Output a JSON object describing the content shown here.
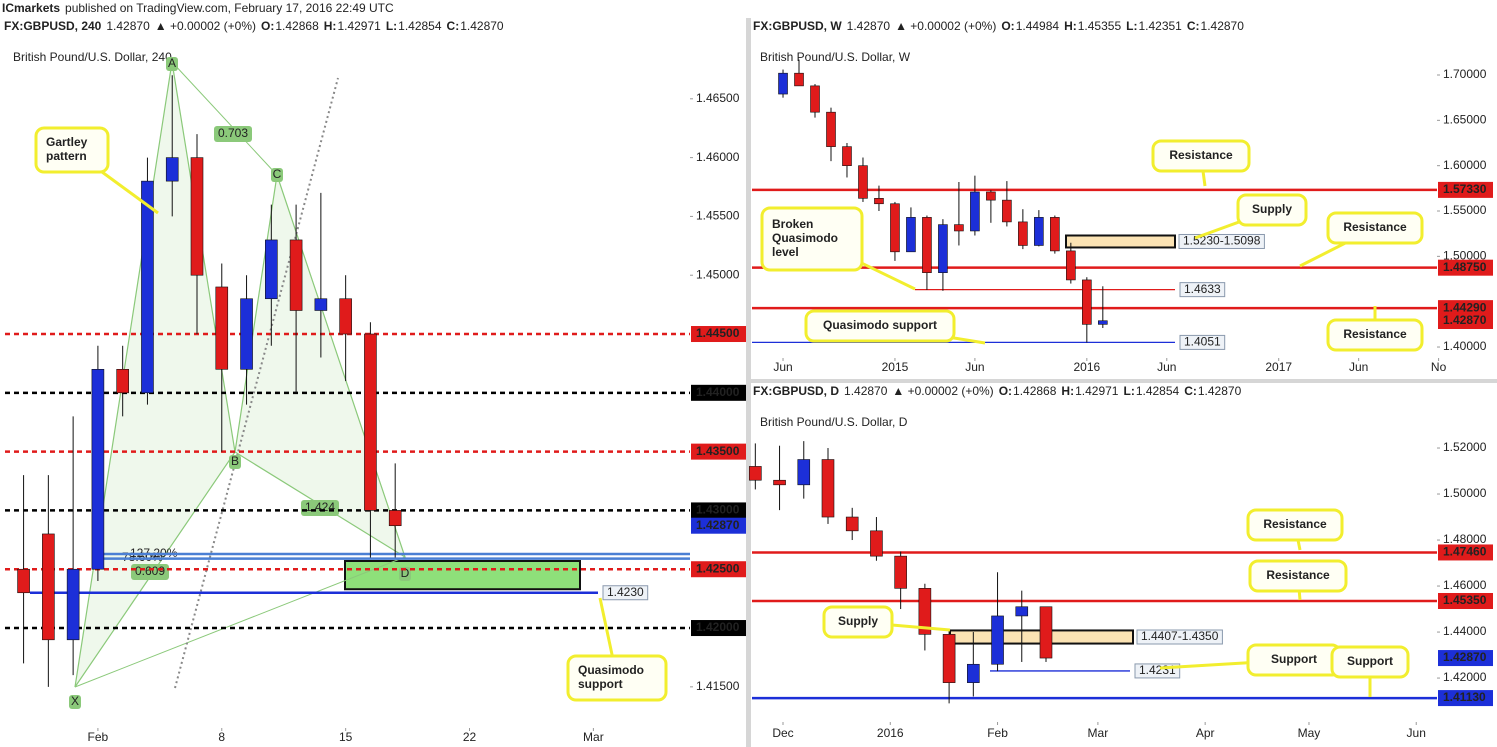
{
  "header": {
    "publisher": "ICmarkets",
    "published": "published on TradingView.com, February 17, 2016 22:49 UTC"
  },
  "chart_data": [
    {
      "type": "candlestick",
      "symbol": "FX:GBPUSD, 240",
      "price": "1.42870",
      "change": "▲ +0.00002 (+0%)",
      "ohlc": [
        {
          "key": "O:",
          "value": "1.42868"
        },
        {
          "key": "H:",
          "value": "1.42971"
        },
        {
          "key": "L:",
          "value": "1.42854"
        },
        {
          "key": "C:",
          "value": "1.42870"
        }
      ],
      "title": "British Pound/U.S. Dollar, 240",
      "up_color": "#1c2fd8",
      "down_color": "#e01b1b",
      "x": [
        -3,
        -2,
        -1,
        0,
        1,
        2,
        3,
        4,
        5,
        6,
        7,
        8,
        9,
        10,
        11,
        12
      ],
      "open": [
        1.425,
        1.428,
        1.419,
        1.425,
        1.442,
        1.44,
        1.458,
        1.46,
        1.449,
        1.442,
        1.448,
        1.453,
        1.447,
        1.448,
        1.445,
        1.43
      ],
      "high": [
        1.433,
        1.433,
        1.438,
        1.444,
        1.444,
        1.46,
        1.467,
        1.462,
        1.451,
        1.45,
        1.456,
        1.456,
        1.457,
        1.45,
        1.446,
        1.434
      ],
      "low": [
        1.417,
        1.415,
        1.416,
        1.424,
        1.438,
        1.439,
        1.455,
        1.445,
        1.435,
        1.439,
        1.444,
        1.44,
        1.443,
        1.441,
        1.426,
        1.426
      ],
      "close": [
        1.423,
        1.419,
        1.425,
        1.442,
        1.44,
        1.458,
        1.46,
        1.45,
        1.442,
        1.448,
        1.453,
        1.447,
        1.448,
        1.445,
        1.43,
        1.4287
      ],
      "xlim": [
        -3.75,
        23.9
      ],
      "xticks": [
        {
          "value": 0,
          "label": "Feb"
        },
        {
          "value": 5,
          "label": "8"
        },
        {
          "value": 10,
          "label": "15"
        },
        {
          "value": 15,
          "label": "22"
        },
        {
          "value": 20,
          "label": "Mar"
        }
      ],
      "ylim": [
        1.4115,
        1.47
      ],
      "yticks": [
        {
          "value": 1.465,
          "label": "1.46500"
        },
        {
          "value": 1.46,
          "label": "1.46000"
        },
        {
          "value": 1.455,
          "label": "1.45500"
        },
        {
          "value": 1.45,
          "label": "1.45000"
        },
        {
          "value": 1.415,
          "label": "1.41500"
        }
      ],
      "levels": [
        {
          "value": 1.445,
          "label": "1.44500",
          "color": "#e01b1b",
          "style": "dashed"
        },
        {
          "value": 1.44,
          "label": "1.44000",
          "color": "#000000",
          "style": "dashed"
        },
        {
          "value": 1.435,
          "label": "1.43500",
          "color": "#e01b1b",
          "style": "dashed"
        },
        {
          "value": 1.43,
          "label": "1.43000",
          "color": "#000000",
          "style": "dashed"
        },
        {
          "value": 1.425,
          "label": "1.42500",
          "color": "#e01b1b",
          "style": "dashed"
        },
        {
          "value": 1.42,
          "label": "1.42000",
          "color": "#000000",
          "style": "dashed"
        },
        {
          "value": 1.423,
          "note": "1.4230",
          "color": "#1c2fd8",
          "style": "solid"
        },
        {
          "value": 1.4263,
          "color": "#4a7fd4",
          "style": "solid"
        },
        {
          "value": 1.4259,
          "color": "#4a7fd4",
          "style": "solid"
        }
      ],
      "price_label": {
        "value": 1.4287,
        "label": "1.42870",
        "color": "#1c2fd8"
      },
      "zones": [
        {
          "low": 1.4233,
          "high": 1.4257,
          "color": "#8ee07a"
        }
      ],
      "annotations": [
        {
          "lines": [
            "Gartley",
            "pattern"
          ]
        },
        {
          "lines": [
            "Quasimodo",
            "support"
          ]
        }
      ],
      "pattern_points": [
        "X",
        "A",
        "B",
        "C",
        "D"
      ],
      "ratios": [
        "0.703",
        "1.424",
        "0.609"
      ],
      "fib_labels": [
        "127.20%",
        "78.60%"
      ]
    },
    {
      "type": "candlestick",
      "symbol": "FX:GBPUSD, W",
      "price": "1.42870",
      "change": "▲ +0.00002 (+0%)",
      "ohlc": [
        {
          "key": "O:",
          "value": "1.44984"
        },
        {
          "key": "H:",
          "value": "1.45355"
        },
        {
          "key": "L:",
          "value": "1.42351"
        },
        {
          "key": "C:",
          "value": "1.42870"
        }
      ],
      "title": "British Pound/U.S. Dollar, W",
      "up_color": "#1c2fd8",
      "down_color": "#e01b1b",
      "x": [
        0,
        1,
        2,
        3,
        4,
        5,
        6,
        7,
        8,
        9,
        10,
        11,
        12,
        13,
        14,
        15,
        16,
        17,
        18,
        19,
        20
      ],
      "open": [
        1.679,
        1.702,
        1.688,
        1.659,
        1.621,
        1.6,
        1.564,
        1.558,
        1.505,
        1.543,
        1.482,
        1.535,
        1.528,
        1.571,
        1.562,
        1.538,
        1.512,
        1.543,
        1.506,
        1.474,
        1.425
      ],
      "high": [
        1.706,
        1.717,
        1.69,
        1.664,
        1.625,
        1.609,
        1.578,
        1.56,
        1.554,
        1.545,
        1.541,
        1.582,
        1.589,
        1.573,
        1.583,
        1.552,
        1.551,
        1.545,
        1.515,
        1.477,
        1.467
      ],
      "low": [
        1.675,
        1.688,
        1.653,
        1.605,
        1.587,
        1.56,
        1.55,
        1.495,
        1.505,
        1.463,
        1.462,
        1.512,
        1.523,
        1.537,
        1.533,
        1.508,
        1.511,
        1.503,
        1.47,
        1.405,
        1.421
      ],
      "close": [
        1.702,
        1.688,
        1.659,
        1.621,
        1.6,
        1.564,
        1.558,
        1.505,
        1.543,
        1.482,
        1.535,
        1.528,
        1.571,
        1.562,
        1.538,
        1.512,
        1.543,
        1.506,
        1.474,
        1.425,
        1.429
      ],
      "xlim": [
        -1.94,
        40.9
      ],
      "xticks": [
        {
          "value": 0,
          "label": "Jun"
        },
        {
          "value": 7,
          "label": "2015"
        },
        {
          "value": 12,
          "label": "Jun"
        },
        {
          "value": 19,
          "label": "2016"
        },
        {
          "value": 24,
          "label": "Jun"
        },
        {
          "value": 31,
          "label": "2017"
        },
        {
          "value": 36,
          "label": "Jun"
        },
        {
          "value": 41,
          "label": "No"
        }
      ],
      "ylim": [
        1.3879,
        1.7386
      ],
      "yticks": [
        {
          "value": 1.7,
          "label": "1.70000"
        },
        {
          "value": 1.65,
          "label": "1.65000"
        },
        {
          "value": 1.6,
          "label": "1.60000"
        },
        {
          "value": 1.55,
          "label": "1.55000"
        },
        {
          "value": 1.5,
          "label": "1.50000"
        },
        {
          "value": 1.4,
          "label": "1.40000"
        }
      ],
      "levels": [
        {
          "value": 1.5733,
          "label": "1.57330",
          "color": "#e01b1b",
          "style": "solid"
        },
        {
          "value": 1.4875,
          "label": "1.48750",
          "color": "#e01b1b",
          "style": "solid"
        },
        {
          "value": 1.4429,
          "label": "1.44290",
          "color": "#e01b1b",
          "style": "solid"
        },
        {
          "value": 1.4633,
          "note": "1.4633",
          "color": "#e01b1b",
          "style": "thin"
        },
        {
          "value": 1.4051,
          "note": "1.4051",
          "color": "#1c2fd8",
          "style": "thin"
        }
      ],
      "price_label": {
        "value": 1.4287,
        "label": "1.42870",
        "color": "#e01b1b"
      },
      "zones": [
        {
          "low": 1.5098,
          "high": 1.523,
          "note": "1.5230-1.5098",
          "color": "#fbe3b4"
        }
      ],
      "annotations": [
        {
          "lines": [
            "Resistance"
          ]
        },
        {
          "lines": [
            "Supply"
          ]
        },
        {
          "lines": [
            "Resistance"
          ]
        },
        {
          "lines": [
            "Broken",
            "Quasimodo",
            "level"
          ]
        },
        {
          "lines": [
            "Resistance"
          ]
        },
        {
          "lines": [
            "Quasimodo support"
          ]
        }
      ]
    },
    {
      "type": "candlestick",
      "symbol": "FX:GBPUSD, D",
      "price": "1.42870",
      "change": "▲ +0.00002 (+0%)",
      "ohlc": [
        {
          "key": "O:",
          "value": "1.42868"
        },
        {
          "key": "H:",
          "value": "1.42971"
        },
        {
          "key": "L:",
          "value": "1.42854"
        },
        {
          "key": "C:",
          "value": "1.42870"
        }
      ],
      "title": "British Pound/U.S. Dollar, D",
      "up_color": "#1c2fd8",
      "down_color": "#e01b1b",
      "x": [
        -8,
        -1,
        6,
        13,
        20,
        27,
        34,
        41,
        48,
        55,
        62,
        69,
        76
      ],
      "open": [
        1.512,
        1.506,
        1.504,
        1.515,
        1.49,
        1.484,
        1.473,
        1.459,
        1.439,
        1.418,
        1.426,
        1.447,
        1.451
      ],
      "high": [
        1.522,
        1.521,
        1.523,
        1.52,
        1.494,
        1.49,
        1.475,
        1.461,
        1.441,
        1.44,
        1.466,
        1.458,
        1.451
      ],
      "low": [
        1.502,
        1.493,
        1.498,
        1.487,
        1.48,
        1.471,
        1.45,
        1.432,
        1.409,
        1.412,
        1.423,
        1.427,
        1.427
      ],
      "close": [
        1.506,
        1.504,
        1.515,
        1.49,
        1.484,
        1.473,
        1.459,
        1.439,
        1.418,
        1.426,
        1.447,
        1.451,
        1.4287
      ],
      "xlim": [
        -8.96,
        189
      ],
      "xticks": [
        {
          "value": 0,
          "label": "Dec"
        },
        {
          "value": 31,
          "label": "2016"
        },
        {
          "value": 62,
          "label": "Feb"
        },
        {
          "value": 91,
          "label": "Mar"
        },
        {
          "value": 122,
          "label": "Apr"
        },
        {
          "value": 152,
          "label": "May"
        },
        {
          "value": 183,
          "label": "Jun"
        }
      ],
      "ylim": [
        1.4009,
        1.5387
      ],
      "yticks": [
        {
          "value": 1.52,
          "label": "1.52000"
        },
        {
          "value": 1.5,
          "label": "1.50000"
        },
        {
          "value": 1.48,
          "label": "1.48000"
        },
        {
          "value": 1.46,
          "label": "1.46000"
        },
        {
          "value": 1.44,
          "label": "1.44000"
        },
        {
          "value": 1.42,
          "label": "1.42000"
        }
      ],
      "levels": [
        {
          "value": 1.4746,
          "label": "1.47460",
          "color": "#e01b1b",
          "style": "solid"
        },
        {
          "value": 1.4535,
          "label": "1.45350",
          "color": "#e01b1b",
          "style": "solid"
        },
        {
          "value": 1.4113,
          "label": "1.41130",
          "color": "#1c2fd8",
          "style": "solid"
        },
        {
          "value": 1.4231,
          "note": "1.4231",
          "color": "#1c2fd8",
          "style": "thin"
        }
      ],
      "price_label": {
        "value": 1.4287,
        "label": "1.42870",
        "color": "#1c2fd8"
      },
      "zones": [
        {
          "low": 1.435,
          "high": 1.4407,
          "note": "1.4407-1.4350",
          "color": "#fbe3b4"
        }
      ],
      "annotations": [
        {
          "lines": [
            "Resistance"
          ]
        },
        {
          "lines": [
            "Resistance"
          ]
        },
        {
          "lines": [
            "Supply"
          ]
        },
        {
          "lines": [
            "Support"
          ]
        },
        {
          "lines": [
            "Support"
          ]
        }
      ]
    }
  ]
}
